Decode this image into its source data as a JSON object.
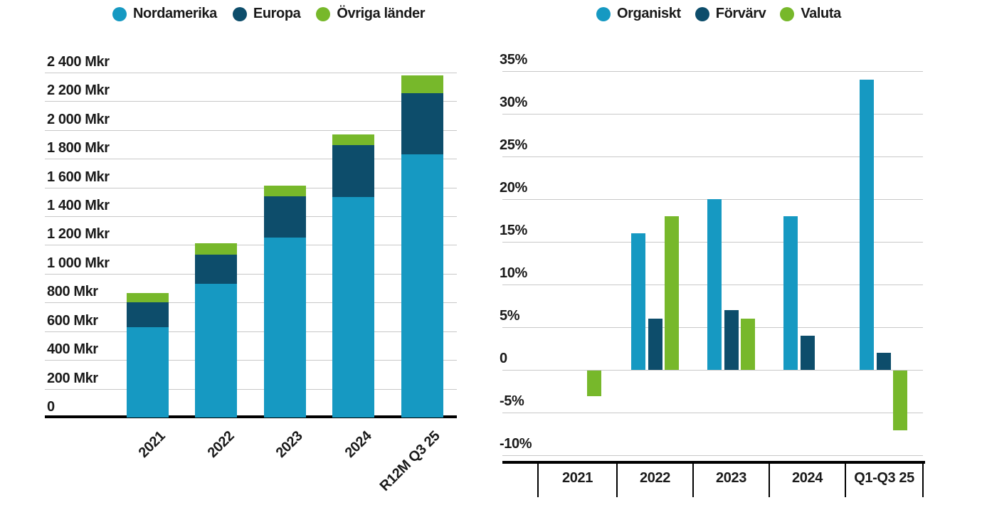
{
  "colors": {
    "light_blue": "#1699C2",
    "dark_blue": "#0D4D6B",
    "green": "#77B82B",
    "gridline": "#C8C8C8",
    "axis": "#000000",
    "text": "#1A1A1A",
    "background": "#FFFFFF"
  },
  "chart_data": [
    {
      "id": "net-sales-by-region",
      "type": "bar",
      "stacked": true,
      "categories": [
        "2021",
        "2022",
        "2023",
        "2024",
        "R12M Q3 25"
      ],
      "series": [
        {
          "name": "Nordamerika",
          "color": "light_blue",
          "values": [
            630,
            930,
            1250,
            1535,
            1830
          ]
        },
        {
          "name": "Europa",
          "color": "dark_blue",
          "values": [
            170,
            205,
            290,
            360,
            425
          ]
        },
        {
          "name": "Övriga länder",
          "color": "green",
          "values": [
            65,
            75,
            75,
            75,
            125
          ]
        }
      ],
      "totals": [
        865,
        1210,
        1615,
        1970,
        2380
      ],
      "unit": "Mkr",
      "ylim": [
        0,
        2400
      ],
      "ytick_step": 200,
      "ytick_labels": [
        "0",
        "200 Mkr",
        "400 Mkr",
        "600 Mkr",
        "800 Mkr",
        "1 000 Mkr",
        "1 200 Mkr",
        "1 400 Mkr",
        "1 600 Mkr",
        "1 800 Mkr",
        "2 000 Mkr",
        "2 200 Mkr",
        "2 400 Mkr"
      ],
      "grid": true,
      "legend_position": "top"
    },
    {
      "id": "growth-breakdown",
      "type": "bar",
      "stacked": false,
      "categories": [
        "2021",
        "2022",
        "2023",
        "2024",
        "Q1-Q3 25"
      ],
      "series": [
        {
          "name": "Organiskt",
          "color": "light_blue",
          "values": [
            null,
            16,
            20,
            18,
            34
          ]
        },
        {
          "name": "Förvärv",
          "color": "dark_blue",
          "values": [
            null,
            6,
            7,
            4,
            2
          ]
        },
        {
          "name": "Valuta",
          "color": "green",
          "values": [
            -3,
            18,
            6,
            null,
            -7
          ]
        }
      ],
      "unit": "%",
      "ylim": [
        -10,
        35
      ],
      "ytick_step": 5,
      "ytick_labels": [
        "-10%",
        "-5%",
        "0",
        "5%",
        "10%",
        "15%",
        "20%",
        "25%",
        "30%",
        "35%"
      ],
      "grid": true,
      "legend_position": "top"
    }
  ]
}
